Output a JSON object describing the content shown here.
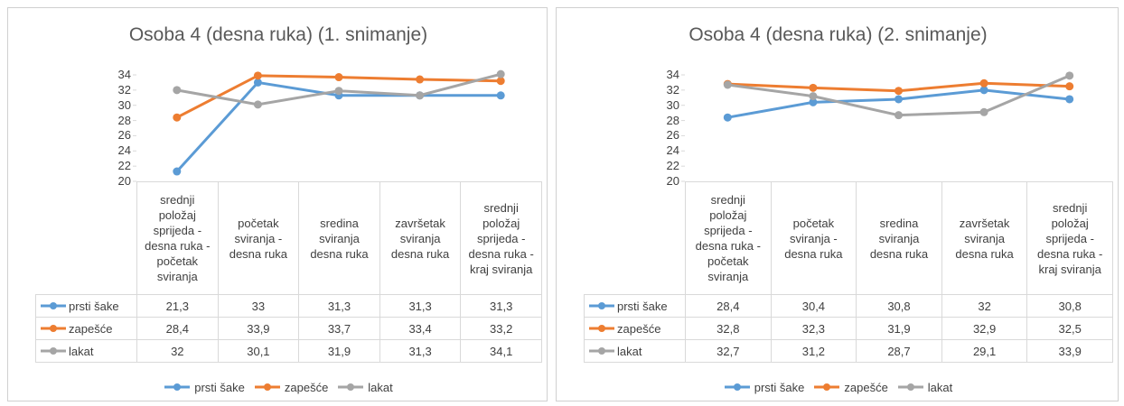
{
  "chart_data": [
    {
      "type": "line",
      "title": "Osoba 4 (desna ruka) (1. snimanje)",
      "categories": [
        "srednji položaj sprijeda - desna ruka - početak sviranja",
        "početak sviranja - desna ruka",
        "sredina sviranja desna ruka",
        "završetak sviranja desna ruka",
        "srednji položaj sprijeda - desna ruka - kraj sviranja"
      ],
      "series": [
        {
          "name": "prsti šake",
          "color": "#5b9bd5",
          "values": [
            21.3,
            33,
            31.3,
            31.3,
            31.3
          ],
          "value_labels": [
            "21,3",
            "33",
            "31,3",
            "31,3",
            "31,3"
          ]
        },
        {
          "name": "zapešće",
          "color": "#ed7d31",
          "values": [
            28.4,
            33.9,
            33.7,
            33.4,
            33.2
          ],
          "value_labels": [
            "28,4",
            "33,9",
            "33,7",
            "33,4",
            "33,2"
          ]
        },
        {
          "name": "lakat",
          "color": "#a5a5a5",
          "values": [
            32,
            30.1,
            31.9,
            31.3,
            34.1
          ],
          "value_labels": [
            "32",
            "30,1",
            "31,9",
            "31,3",
            "34,1"
          ]
        }
      ],
      "ylim": [
        20,
        34
      ],
      "yticks": [
        20,
        22,
        24,
        26,
        28,
        30,
        32,
        34
      ],
      "grid": false,
      "legend": "bottom",
      "data_table": true
    },
    {
      "type": "line",
      "title": "Osoba 4 (desna ruka) (2. snimanje)",
      "categories": [
        "srednji položaj sprijeda - desna ruka - početak sviranja",
        "početak sviranja - desna ruka",
        "sredina sviranja desna ruka",
        "završetak sviranja desna ruka",
        "srednji položaj sprijeda - desna ruka - kraj sviranja"
      ],
      "series": [
        {
          "name": "prsti šake",
          "color": "#5b9bd5",
          "values": [
            28.4,
            30.4,
            30.8,
            32,
            30.8
          ],
          "value_labels": [
            "28,4",
            "30,4",
            "30,8",
            "32",
            "30,8"
          ]
        },
        {
          "name": "zapešće",
          "color": "#ed7d31",
          "values": [
            32.8,
            32.3,
            31.9,
            32.9,
            32.5
          ],
          "value_labels": [
            "32,8",
            "32,3",
            "31,9",
            "32,9",
            "32,5"
          ]
        },
        {
          "name": "lakat",
          "color": "#a5a5a5",
          "values": [
            32.7,
            31.2,
            28.7,
            29.1,
            33.9
          ],
          "value_labels": [
            "32,7",
            "31,2",
            "28,7",
            "29,1",
            "33,9"
          ]
        }
      ],
      "ylim": [
        20,
        34
      ],
      "yticks": [
        20,
        22,
        24,
        26,
        28,
        30,
        32,
        34
      ],
      "grid": false,
      "legend": "bottom",
      "data_table": true
    }
  ]
}
